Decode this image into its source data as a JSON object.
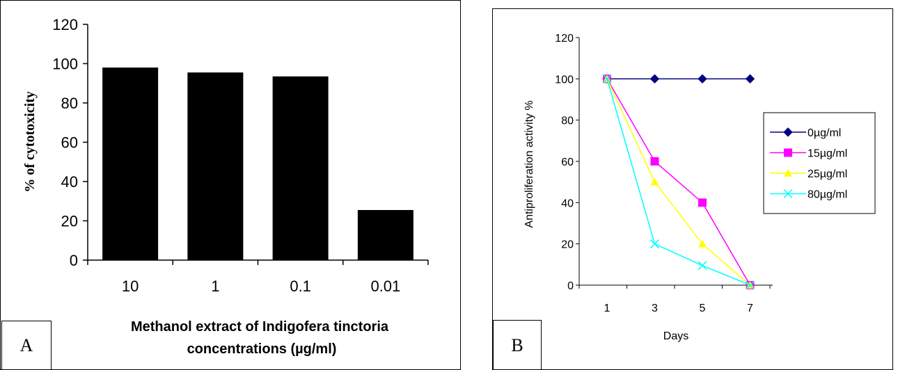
{
  "chart_data": [
    {
      "type": "bar",
      "panel_label": "A",
      "categories": [
        "10",
        "1",
        "0.1",
        "0.01"
      ],
      "values": [
        98,
        95.5,
        93.5,
        25.5
      ],
      "ylabel": "% of cytotoxicity",
      "xlabel_line1": "Methanol extract of Indigofera tinctoria",
      "xlabel_line2": "concentrations  (µg/ml)",
      "ylim": [
        0,
        120
      ],
      "yticks": [
        "0",
        "20",
        "40",
        "60",
        "80",
        "100",
        "120"
      ],
      "bar_color": "#000000",
      "grid": false
    },
    {
      "type": "line",
      "panel_label": "B",
      "x": [
        "1",
        "3",
        "5",
        "7"
      ],
      "xlabel": "Days",
      "ylabel": "Antiproliferation activity %",
      "ylim": [
        0,
        120
      ],
      "yticks": [
        "0",
        "20",
        "40",
        "60",
        "80",
        "100",
        "120"
      ],
      "grid": false,
      "legend_position": "right",
      "series": [
        {
          "name": "0µg/ml",
          "values": [
            100,
            100,
            100,
            100
          ],
          "color": "#000080",
          "marker": "diamond"
        },
        {
          "name": "15µg/ml",
          "values": [
            100,
            60,
            40,
            0
          ],
          "color": "#ff00ff",
          "marker": "square"
        },
        {
          "name": "25µg/ml",
          "values": [
            100,
            50,
            20,
            0
          ],
          "color": "#ffff00",
          "marker": "triangle"
        },
        {
          "name": "80µg/ml",
          "values": [
            100,
            20,
            9.5,
            0
          ],
          "color": "#00ffff",
          "marker": "x"
        }
      ]
    }
  ]
}
